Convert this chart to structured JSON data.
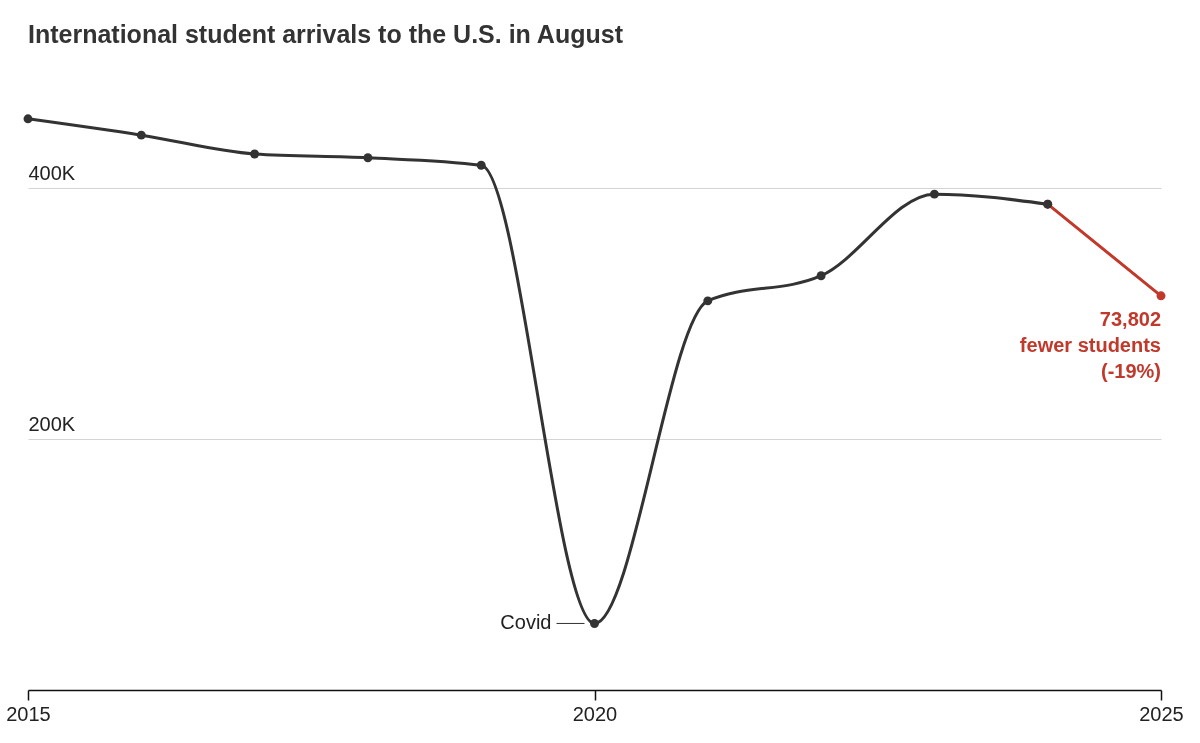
{
  "chart_data": {
    "type": "line",
    "title": "International student arrivals to the U.S. in August",
    "series": [
      {
        "color": "#333333",
        "x": [
          2015,
          2016,
          2017,
          2018,
          2019,
          2020,
          2021,
          2022,
          2023,
          2024
        ],
        "values": [
          455000,
          442000,
          427000,
          424000,
          418000,
          53000,
          310000,
          330000,
          395000,
          387000
        ]
      },
      {
        "color": "#c0392b",
        "x": [
          2024,
          2025
        ],
        "values": [
          387000,
          314000
        ]
      }
    ],
    "xlim": [
      2015,
      2025
    ],
    "xticks": [
      2015,
      2020,
      2025
    ],
    "ylim": [
      0,
      470000
    ],
    "yticks": [
      {
        "value": 200000,
        "label": "200K"
      },
      {
        "value": 400000,
        "label": "400K"
      }
    ],
    "grid": "y",
    "marker": "circle",
    "line_style": "solid",
    "annotations": [
      {
        "text": "Covid",
        "x": 2020,
        "y": 53000
      },
      {
        "text": "73,802\nfewer students\n(-19%)",
        "x": 2025,
        "y": 314000
      }
    ]
  }
}
